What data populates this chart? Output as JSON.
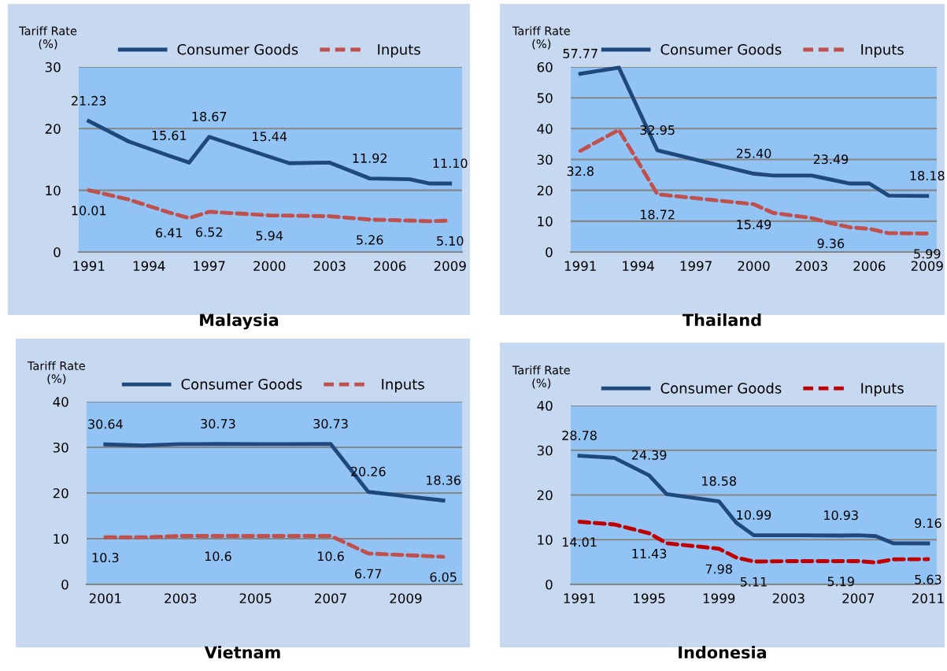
{
  "chart_data": [
    {
      "type": "line",
      "title": "Malaysia",
      "ylabel": "Tariff Rate\n(%)",
      "x": [
        1991,
        1993,
        1995,
        1996,
        1997,
        2000,
        2001,
        2003,
        2005,
        2007,
        2008,
        2009
      ],
      "xlim": [
        1990.5,
        2009.6
      ],
      "xticks": [
        1991,
        1994,
        1997,
        2000,
        2003,
        2006,
        2009
      ],
      "ylim": [
        0,
        30
      ],
      "yticks": [
        0,
        10,
        20,
        30
      ],
      "grid": "y",
      "legend": "top",
      "marker": "none",
      "series": [
        {
          "name": "Consumer Goods",
          "color": "#1f497d",
          "line_style": "solid",
          "values": [
            21.23,
            17.9,
            15.61,
            14.5,
            18.67,
            15.44,
            14.4,
            14.5,
            11.92,
            11.8,
            11.1,
            11.1
          ],
          "value_labels": [
            "21.23",
            null,
            "15.61",
            null,
            "18.67",
            "15.44",
            null,
            null,
            "11.92",
            null,
            null,
            "11.10"
          ]
        },
        {
          "name": "Inputs",
          "color": "#c0504d",
          "line_style": "dashed",
          "values": [
            10.01,
            8.5,
            6.41,
            5.5,
            6.52,
            5.94,
            5.9,
            5.8,
            5.26,
            5.1,
            5.0,
            5.1
          ],
          "value_labels": [
            "10.01",
            null,
            "6.41",
            null,
            "6.52",
            "5.94",
            null,
            null,
            "5.26",
            null,
            null,
            "5.10"
          ]
        }
      ]
    },
    {
      "type": "line",
      "title": "Thailand",
      "ylabel": "Tariff Rate\n(%)",
      "x": [
        1991,
        1993,
        1995,
        2000,
        2001,
        2003,
        2004,
        2005,
        2006,
        2007,
        2009
      ],
      "xlim": [
        1990.5,
        2009.5
      ],
      "xticks": [
        1991,
        1994,
        1997,
        2000,
        2003,
        2006,
        2009
      ],
      "ylim": [
        0,
        60
      ],
      "yticks": [
        0,
        10,
        20,
        30,
        40,
        50,
        60
      ],
      "grid": "y",
      "legend": "top",
      "marker": "none",
      "series": [
        {
          "name": "Consumer Goods",
          "color": "#1f497d",
          "line_style": "solid",
          "values": [
            57.77,
            59.8,
            32.95,
            25.4,
            24.8,
            24.8,
            23.49,
            22.2,
            22.2,
            18.3,
            18.18
          ],
          "value_labels": [
            "57.77",
            null,
            "32.95",
            "25.40",
            null,
            null,
            "23.49",
            null,
            null,
            null,
            "18.18"
          ]
        },
        {
          "name": "Inputs",
          "color": "#c0504d",
          "line_style": "dashed",
          "values": [
            32.8,
            39.6,
            18.72,
            15.49,
            12.7,
            11.0,
            9.36,
            8.0,
            7.5,
            6.1,
            5.99
          ],
          "value_labels": [
            "32.8",
            null,
            "18.72",
            "15.49",
            null,
            null,
            "9.36",
            null,
            null,
            null,
            "5.99"
          ]
        }
      ]
    },
    {
      "type": "line",
      "title": "Vietnam",
      "ylabel": "Tariff Rate\n(%)",
      "x": [
        2001,
        2002,
        2003,
        2004,
        2005,
        2006,
        2007,
        2008,
        2009,
        2010
      ],
      "xlim": [
        2000.5,
        2010.5
      ],
      "xticks": [
        2001,
        2003,
        2005,
        2007,
        2009
      ],
      "ylim": [
        0,
        40
      ],
      "yticks": [
        0,
        10,
        20,
        30,
        40
      ],
      "grid": "y",
      "legend": "top",
      "marker": "none",
      "series": [
        {
          "name": "Consumer Goods",
          "color": "#1f497d",
          "line_style": "solid",
          "values": [
            30.64,
            30.4,
            30.7,
            30.73,
            30.7,
            30.7,
            30.73,
            20.26,
            19.3,
            18.36
          ],
          "value_labels": [
            "30.64",
            null,
            null,
            "30.73",
            null,
            null,
            "30.73",
            "20.26",
            null,
            "18.36"
          ]
        },
        {
          "name": "Inputs",
          "color": "#c0504d",
          "line_style": "dashed",
          "values": [
            10.3,
            10.3,
            10.6,
            10.6,
            10.6,
            10.6,
            10.6,
            6.77,
            6.4,
            6.05
          ],
          "value_labels": [
            "10.3",
            null,
            null,
            "10.6",
            null,
            null,
            "10.6",
            "6.77",
            null,
            "6.05"
          ]
        }
      ]
    },
    {
      "type": "line",
      "title": "Indonesia",
      "ylabel": "Tariff Rate\n(%)",
      "x": [
        1991,
        1993,
        1995,
        1996,
        1999,
        2000,
        2001,
        2003,
        2006,
        2007,
        2008,
        2009,
        2011
      ],
      "xlim": [
        1990.5,
        2011.5
      ],
      "xticks": [
        1991,
        1995,
        1999,
        2003,
        2007,
        2011
      ],
      "ylim": [
        0,
        40
      ],
      "yticks": [
        0,
        10,
        20,
        30,
        40
      ],
      "grid": "y",
      "legend": "top",
      "marker": "none",
      "series": [
        {
          "name": "Consumer Goods",
          "color": "#1f497d",
          "line_style": "solid",
          "values": [
            28.78,
            28.3,
            24.39,
            20.2,
            18.58,
            13.8,
            10.99,
            11.0,
            10.93,
            11.0,
            10.8,
            9.2,
            9.16
          ],
          "value_labels": [
            "28.78",
            null,
            "24.39",
            null,
            "18.58",
            null,
            "10.99",
            null,
            "10.93",
            null,
            null,
            null,
            "9.16"
          ]
        },
        {
          "name": "Inputs",
          "color": "#c00000",
          "line_style": "dashed",
          "values": [
            14.01,
            13.4,
            11.43,
            9.2,
            7.98,
            6.0,
            5.11,
            5.2,
            5.19,
            5.2,
            4.9,
            5.6,
            5.63
          ],
          "value_labels": [
            "14.01",
            null,
            "11.43",
            null,
            "7.98",
            null,
            "5.11",
            null,
            "5.19",
            null,
            null,
            null,
            "5.63"
          ]
        }
      ]
    }
  ]
}
